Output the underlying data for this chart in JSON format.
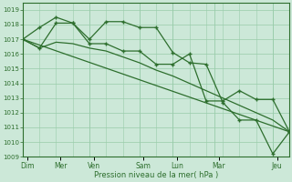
{
  "xlabel": "Pression niveau de la mer( hPa )",
  "bg_color": "#cce8d8",
  "grid_color": "#99ccaa",
  "line_color": "#2d6e2d",
  "ylim": [
    1009,
    1019.5
  ],
  "yticks": [
    1009,
    1010,
    1011,
    1012,
    1013,
    1014,
    1015,
    1016,
    1017,
    1018,
    1019
  ],
  "xlim": [
    0,
    32
  ],
  "day_tick_positions": [
    0.5,
    4.5,
    8.5,
    14.5,
    18.5,
    23.5,
    30.5
  ],
  "day_tick_labels": [
    "Dim",
    "Mer",
    "Ven",
    "Sam",
    "Lun",
    "Mar",
    "Jeu"
  ],
  "vline_positions": [
    0,
    8,
    14,
    18,
    23,
    30
  ],
  "series1_x": [
    0,
    2,
    4,
    6,
    8,
    10,
    12,
    14,
    16,
    18,
    20,
    22,
    24,
    26,
    28,
    30,
    32
  ],
  "series1_y": [
    1017.0,
    1017.8,
    1018.5,
    1018.1,
    1017.0,
    1018.2,
    1018.2,
    1017.8,
    1017.8,
    1016.1,
    1015.4,
    1015.3,
    1012.7,
    1011.5,
    1011.5,
    1009.2,
    1010.7
  ],
  "series2_x": [
    0,
    2,
    4,
    6,
    8,
    10,
    12,
    14,
    16,
    18,
    20,
    22,
    24,
    26,
    28,
    30,
    32
  ],
  "series2_y": [
    1017.0,
    1016.4,
    1018.1,
    1018.1,
    1016.7,
    1016.7,
    1016.2,
    1016.2,
    1015.3,
    1015.3,
    1016.0,
    1012.8,
    1012.8,
    1013.5,
    1012.9,
    1012.9,
    1010.7
  ],
  "series3_x": [
    0,
    2,
    4,
    6,
    8,
    10,
    12,
    14,
    16,
    18,
    20,
    22,
    24,
    26,
    28,
    30,
    32
  ],
  "series3_y": [
    1017.0,
    1016.4,
    1016.8,
    1016.7,
    1016.4,
    1016.2,
    1015.8,
    1015.4,
    1014.9,
    1014.5,
    1014.0,
    1013.5,
    1013.0,
    1012.5,
    1012.0,
    1011.5,
    1010.7
  ],
  "series4_x": [
    0,
    32
  ],
  "series4_y": [
    1017.0,
    1010.7
  ]
}
